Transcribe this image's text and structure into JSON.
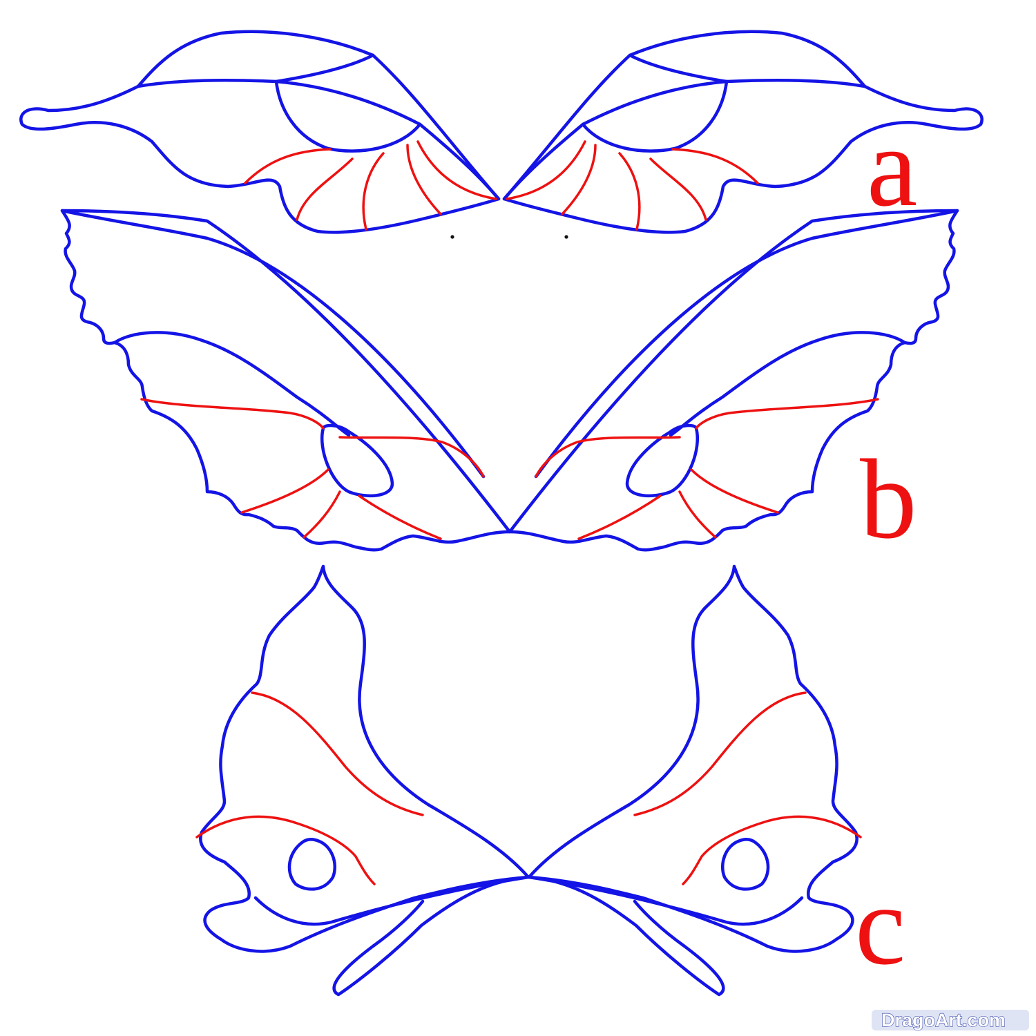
{
  "steps": [
    {
      "label": "a"
    },
    {
      "label": "b"
    },
    {
      "label": "c"
    }
  ],
  "watermark": "DragoArt.com",
  "colors": {
    "outline": "#1414e6",
    "vein": "#ee1111",
    "label": "#ee1111",
    "background": "#ffffff"
  }
}
